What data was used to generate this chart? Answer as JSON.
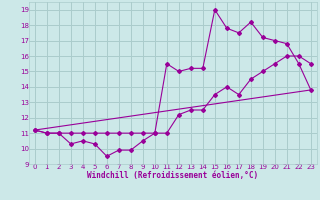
{
  "xlabel": "Windchill (Refroidissement éolien,°C)",
  "bg_color": "#cce8e8",
  "grid_color": "#aacccc",
  "line_color": "#990099",
  "xlim": [
    -0.5,
    23.5
  ],
  "ylim": [
    9,
    19.5
  ],
  "xticks": [
    0,
    1,
    2,
    3,
    4,
    5,
    6,
    7,
    8,
    9,
    10,
    11,
    12,
    13,
    14,
    15,
    16,
    17,
    18,
    19,
    20,
    21,
    22,
    23
  ],
  "yticks": [
    9,
    10,
    11,
    12,
    13,
    14,
    15,
    16,
    17,
    18,
    19
  ],
  "series1_x": [
    0,
    1,
    2,
    3,
    4,
    5,
    6,
    7,
    8,
    9,
    10,
    11,
    12,
    13,
    14,
    15,
    16,
    17,
    18,
    19,
    20,
    21,
    22,
    23
  ],
  "series1_y": [
    11.2,
    11.0,
    11.0,
    10.3,
    10.5,
    10.3,
    9.5,
    9.9,
    9.9,
    10.5,
    11.0,
    11.0,
    12.2,
    12.5,
    12.5,
    13.5,
    14.0,
    13.5,
    14.5,
    15.0,
    15.5,
    16.0,
    16.0,
    15.5
  ],
  "series2_x": [
    0,
    1,
    2,
    3,
    4,
    5,
    6,
    7,
    8,
    9,
    10,
    11,
    12,
    13,
    14,
    15,
    16,
    17,
    18,
    19,
    20,
    21,
    22,
    23
  ],
  "series2_y": [
    11.2,
    11.0,
    11.0,
    11.0,
    11.0,
    11.0,
    11.0,
    11.0,
    11.0,
    11.0,
    11.0,
    15.5,
    15.0,
    15.2,
    15.2,
    19.0,
    17.8,
    17.5,
    18.2,
    17.2,
    17.0,
    16.8,
    15.5,
    13.8
  ],
  "series3_x": [
    0,
    23
  ],
  "series3_y": [
    11.2,
    13.8
  ]
}
